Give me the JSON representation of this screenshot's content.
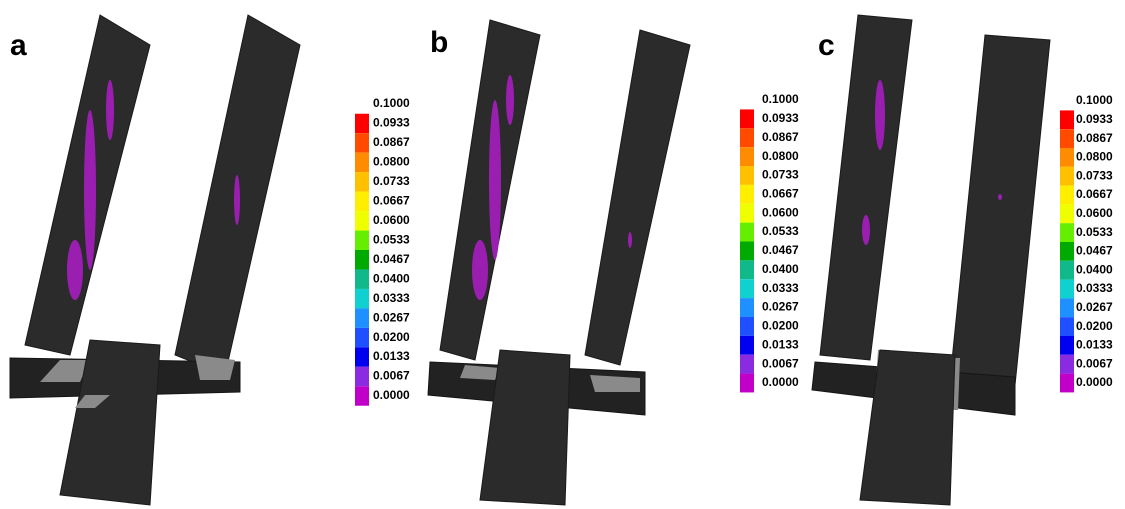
{
  "legend_colors": [
    "#ff0000",
    "#ff4a00",
    "#ff8c00",
    "#ffc000",
    "#ffee00",
    "#f0ff00",
    "#66ee00",
    "#00aa00",
    "#11b889",
    "#11d0d0",
    "#1e90ff",
    "#1e50ff",
    "#0000ee",
    "#8a2be2",
    "#c000c8"
  ],
  "panels": [
    {
      "label": "a",
      "legend": [
        "0.1000",
        "0.0933",
        "0.0867",
        "0.0800",
        "0.0733",
        "0.0667",
        "0.0600",
        "0.0533",
        "0.0467",
        "0.0400",
        "0.0333",
        "0.0267",
        "0.0200",
        "0.0133",
        "0.0067",
        "0.0000"
      ]
    },
    {
      "label": "b",
      "legend": [
        "0.1000",
        "0.0933",
        "0.0867",
        "0.0800",
        "0.0733",
        "0.0667",
        "0.0600",
        "0.0533",
        "0.0467",
        "0.0400",
        "0.0333",
        "0.0267",
        "0.0200",
        "0.0133",
        "0.0067",
        "0.0000"
      ]
    },
    {
      "label": "c",
      "legend": [
        "0.1000",
        "0.0933",
        "0.0867",
        "0.0800",
        "0.0733",
        "0.0667",
        "0.0600",
        "0.0533",
        "0.0467",
        "0.0400",
        "0.0333",
        "0.0267",
        "0.0200",
        "0.0133",
        "0.0067",
        "0.0000"
      ]
    }
  ]
}
